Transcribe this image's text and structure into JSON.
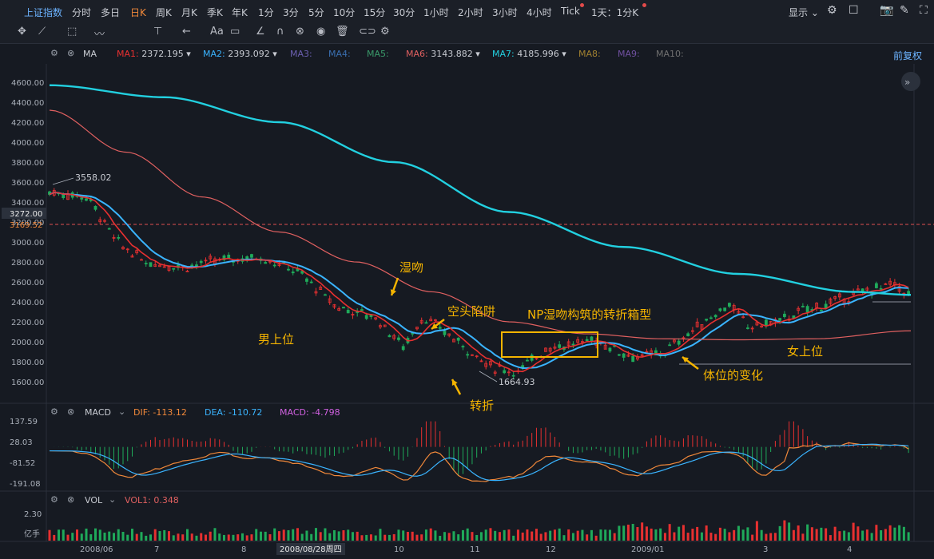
{
  "header": {
    "symbol": "上证指数",
    "periods": [
      "分时",
      "多日",
      "日K",
      "周K",
      "月K",
      "季K",
      "年K",
      "1分",
      "3分",
      "5分",
      "10分",
      "15分",
      "30分",
      "1小时",
      "2小时",
      "3小时",
      "4小时",
      "Tick",
      "1天：1分K"
    ],
    "active_period": "日K",
    "display_label": "显示"
  },
  "toolbar": {
    "icons": [
      "move-icon",
      "line-icon",
      "rect-icon",
      "wave-icon",
      "fib-icon",
      "arrow-icon",
      "text-icon",
      "comment-icon",
      "pen-icon",
      "magnet-icon",
      "lock-icon",
      "eye-icon",
      "trash-icon",
      "link-icon",
      "settings-icon"
    ],
    "text_tool": "Aa"
  },
  "ma_legend": {
    "title": "MA",
    "items": [
      {
        "label": "MA1:",
        "value": "2372.195",
        "color": "#e83030"
      },
      {
        "label": "MA2:",
        "value": "2393.092",
        "color": "#3ab4ff"
      },
      {
        "label": "MA3:",
        "value": "",
        "color": "#6b5fb0"
      },
      {
        "label": "MA4:",
        "value": "",
        "color": "#3a6fb0"
      },
      {
        "label": "MA5:",
        "value": "",
        "color": "#3a9a6a"
      },
      {
        "label": "MA6:",
        "value": "3143.882",
        "color": "#e06060"
      },
      {
        "label": "MA7:",
        "value": "4185.996",
        "color": "#22d0e0"
      },
      {
        "label": "MA8:",
        "value": "",
        "color": "#a08030"
      },
      {
        "label": "MA9:",
        "value": "",
        "color": "#7050a0"
      },
      {
        "label": "MA10:",
        "value": "",
        "color": "#707070"
      }
    ],
    "adjust_label": "前复权"
  },
  "macd_legend": {
    "title": "MACD",
    "dif": "DIF: -113.12",
    "dea": "DEA: -110.72",
    "macd": "MACD: -4.798"
  },
  "vol_legend": {
    "title": "VOL",
    "vol1": "VOL1: 0.348"
  },
  "price_axis": [
    "4600.00",
    "4400.00",
    "4200.00",
    "4000.00",
    "3800.00",
    "3600.00",
    "3400.00",
    "3200.00",
    "3000.00",
    "2800.00",
    "2600.00",
    "2400.00",
    "2200.00",
    "2000.00",
    "1800.00",
    "1600.00"
  ],
  "price_tags": {
    "current": "3272.00",
    "ref": "3169.52"
  },
  "macd_axis": [
    "137.59",
    "28.03",
    "-81.52",
    "-191.08"
  ],
  "vol_axis": [
    "2.30",
    "亿手"
  ],
  "date_axis": [
    "2008/06",
    "7",
    "8",
    "2008/08/28周四",
    "10",
    "11",
    "12",
    "2009/01",
    "3",
    "4"
  ],
  "annotations": {
    "high": "3558.02",
    "low": "1664.93",
    "shi_wen": "湿吻",
    "kong_tou": "空头陷阱",
    "np_box": "NP湿吻构筑的转折箱型",
    "nan": "男上位",
    "zhuan_zhe": "转折",
    "ti_wei": "体位的变化",
    "nv": "女上位"
  },
  "colors": {
    "up": "#e83030",
    "down": "#1faa5a",
    "ma1": "#e83030",
    "ma2": "#3ab4ff",
    "ma6": "#e06060",
    "ma7": "#22d0e0",
    "annot": "#f5b400"
  },
  "chart_data": {
    "type": "line",
    "ylim": [
      1500,
      4700
    ],
    "series": [
      {
        "name": "MA7",
        "x_days": [
          0,
          60,
          120,
          180,
          240,
          300,
          360,
          420,
          450
        ],
        "values": [
          4570,
          4450,
          4200,
          3800,
          3300,
          2950,
          2680,
          2500,
          2470
        ]
      },
      {
        "name": "MA6",
        "x_days": [
          0,
          40,
          80,
          120,
          160,
          200,
          240,
          280,
          320,
          360,
          400,
          450
        ],
        "values": [
          4320,
          3900,
          3450,
          3100,
          2800,
          2500,
          2200,
          2080,
          2030,
          2020,
          2030,
          2110
        ]
      }
    ],
    "price_path": {
      "x_days": [
        0,
        20,
        35,
        50,
        70,
        90,
        110,
        130,
        150,
        170,
        185,
        195,
        210,
        230,
        245,
        260,
        275,
        285,
        295,
        305,
        320,
        335,
        355,
        365,
        380,
        395,
        410,
        425,
        440,
        450
      ],
      "values": [
        3500,
        3450,
        3000,
        2800,
        2750,
        2820,
        2850,
        2700,
        2350,
        2250,
        1950,
        2250,
        2050,
        1750,
        1700,
        1950,
        1980,
        2020,
        1930,
        1850,
        1880,
        2100,
        2380,
        2150,
        2200,
        2320,
        2400,
        2500,
        2580,
        2470
      ]
    },
    "xlim_days": [
      0,
      450
    ]
  }
}
